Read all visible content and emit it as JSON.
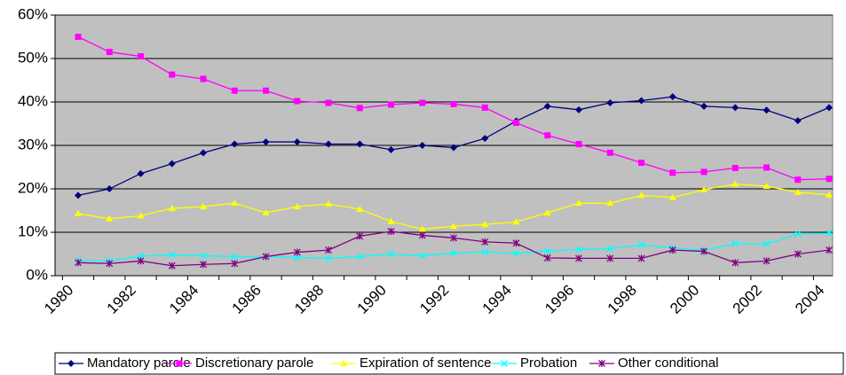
{
  "chart_data": {
    "type": "line",
    "categories": [
      "1980",
      null,
      "1982",
      null,
      "1984",
      null,
      "1986",
      null,
      "1988",
      null,
      "1990",
      null,
      "1992",
      null,
      "1994",
      null,
      "1996",
      null,
      "1998",
      null,
      "2000",
      null,
      "2002",
      null,
      "2004"
    ],
    "ylim": [
      0,
      60
    ],
    "yticks": [
      {
        "value": 0,
        "label": "0%"
      },
      {
        "value": 10,
        "label": "10%"
      },
      {
        "value": 20,
        "label": "20%"
      },
      {
        "value": 30,
        "label": "30%"
      },
      {
        "value": 40,
        "label": "40%"
      },
      {
        "value": 50,
        "label": "50%"
      },
      {
        "value": 60,
        "label": "60%"
      }
    ],
    "grid": true,
    "legend": "bottom",
    "series": [
      {
        "name": "Mandatory parole",
        "color": "#000080",
        "marker": "diamond",
        "values": [
          18.5,
          20,
          23.5,
          25.8,
          28.3,
          30.3,
          30.8,
          30.8,
          30.3,
          30.3,
          29,
          30,
          29.5,
          31.6,
          35.6,
          39,
          38.2,
          39.8,
          40.3,
          41.2,
          39,
          38.7,
          38.1,
          35.7,
          38.7
        ]
      },
      {
        "name": "Discretionary parole",
        "color": "#ff00ff",
        "marker": "square",
        "values": [
          55,
          51.5,
          50.5,
          46.3,
          45.3,
          42.6,
          42.6,
          40.2,
          39.8,
          38.6,
          39.4,
          39.8,
          39.5,
          38.7,
          35.2,
          32.3,
          30.3,
          28.3,
          26,
          23.7,
          23.9,
          24.8,
          24.9,
          22.1,
          22.3
        ]
      },
      {
        "name": "Expiration of sentence",
        "color": "#ffff00",
        "marker": "triangle",
        "values": [
          14.3,
          13.1,
          13.8,
          15.5,
          15.9,
          16.7,
          14.5,
          15.9,
          16.5,
          15.3,
          12.5,
          10.7,
          11.4,
          11.8,
          12.4,
          14.5,
          16.7,
          16.7,
          18.5,
          18,
          19.8,
          21.1,
          20.6,
          19.2,
          18.6
        ]
      },
      {
        "name": "Probation",
        "color": "#00ffff",
        "marker": "x",
        "values": [
          3.5,
          3.4,
          4.5,
          4.8,
          4.6,
          4.4,
          4.4,
          4.2,
          4,
          4.4,
          5,
          4.6,
          5.2,
          5.5,
          5.1,
          5.7,
          6,
          6.2,
          7.1,
          6.4,
          5.8,
          7.4,
          7.3,
          9.6,
          9.8
        ]
      },
      {
        "name": "Other conditional",
        "color": "#800080",
        "marker": "star",
        "values": [
          3,
          2.8,
          3.4,
          2.3,
          2.6,
          2.8,
          4.4,
          5.4,
          5.9,
          9.1,
          10.2,
          9.3,
          8.7,
          7.8,
          7.5,
          4.1,
          4,
          4,
          4,
          5.9,
          5.6,
          3,
          3.4,
          5,
          5.9
        ]
      }
    ]
  }
}
